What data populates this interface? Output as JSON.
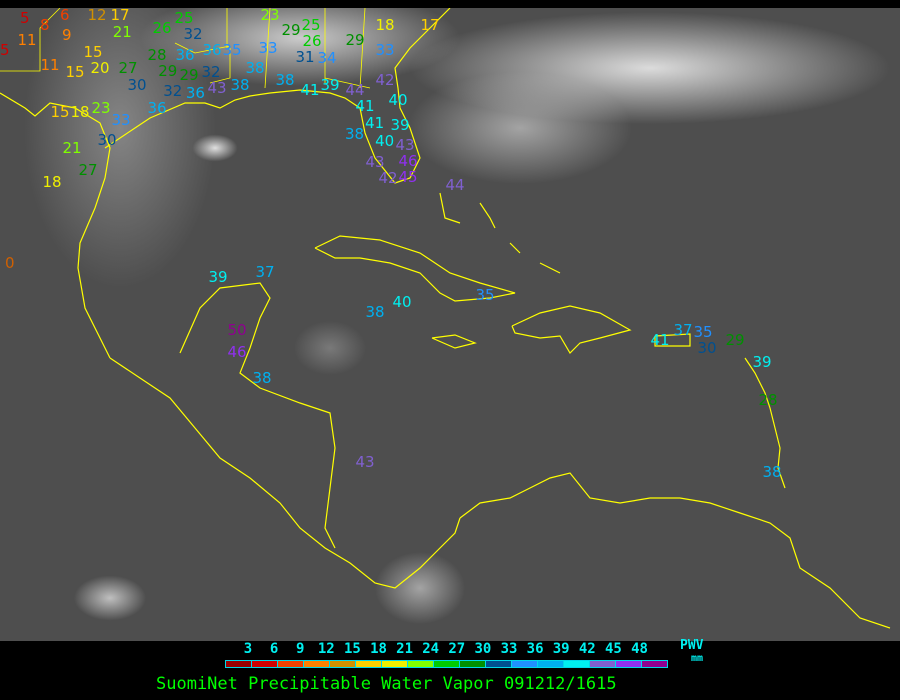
{
  "caption": "SuomiNet Precipitable Water Vapor 091212/1615",
  "legend": {
    "ticks": [
      "3",
      "6",
      "9",
      "12",
      "15",
      "18",
      "21",
      "24",
      "27",
      "30",
      "33",
      "36",
      "39",
      "42",
      "45",
      "48"
    ],
    "unit_top": "PWV",
    "unit_bottom": "mm",
    "colors": [
      "#9a0000",
      "#d00000",
      "#f04000",
      "#ff8000",
      "#d09000",
      "#ffd000",
      "#f0f000",
      "#80ff00",
      "#00cc00",
      "#009000",
      "#005090",
      "#2090ff",
      "#00b0f0",
      "#00f0f0",
      "#8060d0",
      "#9030f0",
      "#900090"
    ]
  },
  "map": {
    "coastline_color": "#ffff00",
    "background": "infrared satellite imagery"
  },
  "stations": [
    "5",
    "6",
    "12",
    "17",
    "21",
    "26",
    "25",
    "32",
    "5",
    "11",
    "8",
    "9",
    "15",
    "11",
    "15",
    "20",
    "27",
    "28",
    "29",
    "29",
    "32",
    "30",
    "32",
    "36",
    "36",
    "36",
    "35",
    "33",
    "23",
    "29",
    "25",
    "26",
    "31",
    "34",
    "29",
    "18",
    "17",
    "33",
    "38",
    "43",
    "38",
    "38",
    "41",
    "39",
    "44",
    "42",
    "41",
    "40",
    "41",
    "38",
    "40",
    "39",
    "43",
    "46",
    "43",
    "45",
    "42",
    "15",
    "18",
    "23",
    "33",
    "30",
    "36",
    "21",
    "27",
    "18",
    "0",
    "44",
    "39",
    "37",
    "50",
    "46",
    "38",
    "38",
    "40",
    "35",
    "41",
    "37",
    "35",
    "30",
    "29",
    "39",
    "28",
    "38",
    "43"
  ]
}
